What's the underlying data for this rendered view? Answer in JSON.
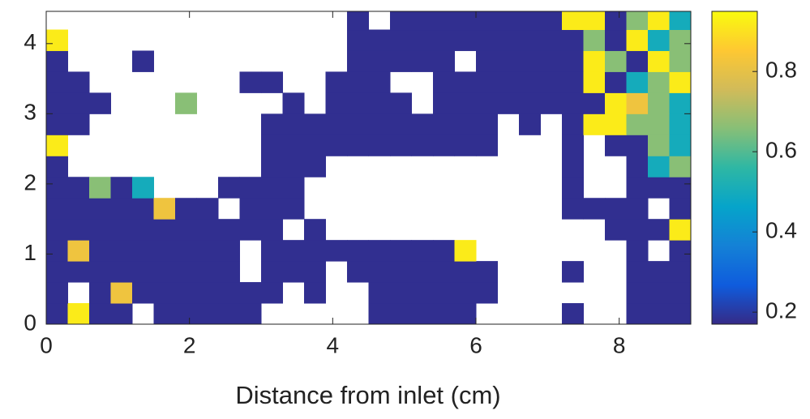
{
  "chart_data": {
    "type": "heatmap",
    "xlabel": "Distance from inlet (cm)",
    "x": [
      0.15,
      0.45,
      0.75,
      1.05,
      1.35,
      1.65,
      1.95,
      2.25,
      2.55,
      2.85,
      3.15,
      3.45,
      3.75,
      4.05,
      4.35,
      4.65,
      4.95,
      5.25,
      5.55,
      5.85,
      6.15,
      6.45,
      6.75,
      7.05,
      7.35,
      7.65,
      7.95,
      8.25,
      8.55,
      8.85
    ],
    "y": [
      0.15,
      0.45,
      0.75,
      1.05,
      1.35,
      1.65,
      1.95,
      2.25,
      2.55,
      2.85,
      3.15,
      3.45,
      3.75,
      4.05,
      4.35
    ],
    "values": [
      [
        0.18,
        0.92,
        0.18,
        0.18,
        null,
        0.18,
        0.18,
        0.18,
        0.18,
        0.18,
        null,
        null,
        null,
        null,
        null,
        0.18,
        0.18,
        0.18,
        0.18,
        0.18,
        null,
        null,
        null,
        null,
        0.18,
        null,
        null,
        0.18,
        0.18,
        0.18
      ],
      [
        0.18,
        null,
        0.18,
        0.82,
        0.18,
        0.18,
        0.18,
        0.18,
        0.18,
        0.18,
        0.18,
        null,
        0.18,
        null,
        null,
        0.18,
        0.18,
        0.18,
        0.18,
        0.18,
        0.18,
        null,
        null,
        null,
        null,
        null,
        null,
        0.18,
        0.18,
        0.18
      ],
      [
        0.18,
        0.18,
        0.18,
        0.18,
        0.18,
        0.18,
        0.18,
        0.18,
        0.18,
        null,
        0.18,
        0.18,
        0.18,
        null,
        0.18,
        0.18,
        0.18,
        0.18,
        0.18,
        0.18,
        0.18,
        null,
        null,
        null,
        0.18,
        null,
        null,
        0.18,
        0.18,
        0.18
      ],
      [
        0.18,
        0.82,
        0.18,
        0.18,
        0.18,
        0.18,
        0.18,
        0.18,
        0.18,
        null,
        0.18,
        0.18,
        0.18,
        0.18,
        0.18,
        0.18,
        0.18,
        0.18,
        0.18,
        0.92,
        null,
        null,
        null,
        null,
        null,
        null,
        null,
        0.18,
        null,
        0.18
      ],
      [
        0.18,
        0.18,
        0.18,
        0.18,
        0.18,
        0.18,
        0.18,
        0.18,
        0.18,
        0.18,
        0.18,
        null,
        0.18,
        null,
        null,
        null,
        null,
        null,
        null,
        null,
        null,
        null,
        null,
        null,
        null,
        null,
        0.18,
        0.18,
        0.18,
        0.92
      ],
      [
        0.18,
        0.18,
        0.18,
        0.18,
        0.18,
        0.82,
        0.18,
        0.18,
        null,
        0.18,
        0.18,
        0.18,
        null,
        null,
        null,
        null,
        null,
        null,
        null,
        null,
        null,
        null,
        null,
        null,
        0.18,
        0.18,
        0.18,
        0.18,
        null,
        0.18
      ],
      [
        0.18,
        0.18,
        0.66,
        0.18,
        0.5,
        null,
        null,
        null,
        0.18,
        0.18,
        0.18,
        0.18,
        null,
        null,
        null,
        null,
        null,
        null,
        null,
        null,
        null,
        null,
        null,
        null,
        0.18,
        null,
        null,
        0.18,
        0.18,
        0.18
      ],
      [
        0.18,
        null,
        null,
        null,
        null,
        null,
        null,
        null,
        null,
        null,
        0.18,
        0.18,
        0.18,
        null,
        null,
        null,
        null,
        null,
        null,
        null,
        null,
        null,
        null,
        null,
        0.18,
        null,
        null,
        0.18,
        0.5,
        0.66
      ],
      [
        0.92,
        null,
        null,
        null,
        null,
        null,
        null,
        null,
        null,
        null,
        0.18,
        0.18,
        0.18,
        0.18,
        0.18,
        0.18,
        0.18,
        0.18,
        0.18,
        0.18,
        0.18,
        null,
        null,
        null,
        0.18,
        null,
        0.18,
        0.18,
        0.66,
        0.5
      ],
      [
        0.18,
        0.18,
        null,
        null,
        null,
        null,
        null,
        null,
        null,
        null,
        0.18,
        0.18,
        0.18,
        0.18,
        0.18,
        0.18,
        0.18,
        0.18,
        0.18,
        0.18,
        0.18,
        null,
        0.18,
        null,
        0.18,
        0.92,
        0.92,
        0.66,
        0.66,
        0.5
      ],
      [
        0.18,
        0.18,
        0.18,
        null,
        null,
        null,
        0.66,
        null,
        null,
        null,
        null,
        0.18,
        null,
        0.18,
        0.18,
        0.18,
        0.18,
        null,
        0.18,
        0.18,
        0.18,
        0.18,
        0.18,
        0.18,
        0.18,
        0.18,
        0.92,
        0.82,
        0.66,
        0.5
      ],
      [
        0.18,
        0.18,
        null,
        null,
        null,
        null,
        null,
        null,
        null,
        0.18,
        0.18,
        null,
        null,
        0.18,
        0.18,
        0.18,
        null,
        null,
        0.18,
        0.18,
        0.18,
        0.18,
        0.18,
        0.18,
        0.18,
        0.92,
        0.18,
        0.5,
        0.66,
        0.92
      ],
      [
        0.18,
        null,
        null,
        null,
        0.18,
        null,
        null,
        null,
        null,
        null,
        null,
        null,
        null,
        null,
        0.18,
        0.18,
        0.18,
        0.18,
        0.18,
        null,
        0.18,
        0.18,
        0.18,
        0.18,
        0.18,
        0.92,
        0.66,
        0.18,
        0.92,
        0.66
      ],
      [
        0.92,
        null,
        null,
        null,
        null,
        null,
        null,
        null,
        null,
        null,
        null,
        null,
        null,
        null,
        0.18,
        0.18,
        0.18,
        0.18,
        0.18,
        0.18,
        0.18,
        0.18,
        0.18,
        0.18,
        0.18,
        0.66,
        0.18,
        0.92,
        0.5,
        0.66
      ],
      [
        null,
        null,
        null,
        null,
        null,
        null,
        null,
        null,
        null,
        null,
        null,
        null,
        null,
        null,
        0.18,
        null,
        0.18,
        0.18,
        0.18,
        0.18,
        0.18,
        0.18,
        0.18,
        0.18,
        0.92,
        0.92,
        0.18,
        0.66,
        0.92,
        0.5
      ]
    ],
    "xlim": [
      0,
      9
    ],
    "ylim": [
      0,
      4.46
    ],
    "xticks": [
      0,
      2,
      4,
      6,
      8
    ],
    "yticks": [
      0,
      1,
      2,
      3,
      4
    ],
    "clim": [
      0.17,
      0.95
    ],
    "cticks": [
      0.2,
      0.4,
      0.6,
      0.8
    ],
    "colormap": [
      "#352a87",
      "#0f5cdd",
      "#1481d6",
      "#06a4ca",
      "#2eb7a4",
      "#87bf77",
      "#d1bb59",
      "#fec832",
      "#f9fb0e"
    ]
  }
}
